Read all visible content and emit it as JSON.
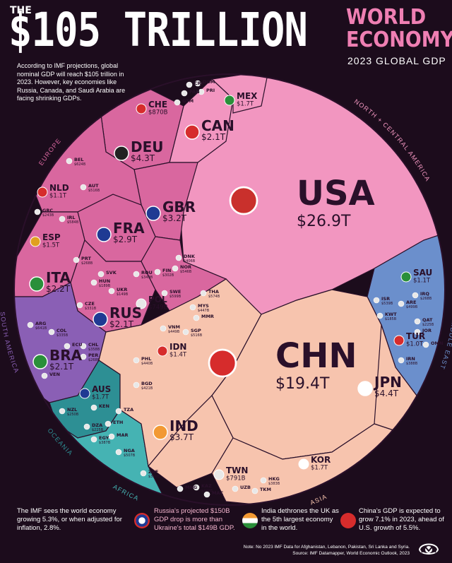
{
  "header": {
    "the": "THE",
    "title": "$105 TRILLION",
    "world": "WORLD",
    "economy": "ECONOMY",
    "subtitle": "2023 GLOBAL GDP"
  },
  "intro": "According to IMF projections, global nominal GDP will reach $105 trillion in 2023. However, key economies like Russia, Canada, and Saudi Arabia are facing shrinking GDPs.",
  "chart_data": {
    "type": "voronoi-treemap",
    "title": "The $105 Trillion World Economy",
    "subtitle": "2023 Global GDP",
    "regions": [
      {
        "name": "NORTH + CENTRAL AMERICA",
        "color": "#f296c0"
      },
      {
        "name": "ASIA",
        "color": "#f7c4ae"
      },
      {
        "name": "EUROPE",
        "color": "#d9679f"
      },
      {
        "name": "MIDDLE EAST",
        "color": "#6b8fcc"
      },
      {
        "name": "SOUTH AMERICA",
        "color": "#8a5fb5"
      },
      {
        "name": "OCEANIA",
        "color": "#2d8f94"
      },
      {
        "name": "AFRICA",
        "color": "#45b3b3"
      }
    ],
    "countries": [
      {
        "code": "USA",
        "value": "$26.9T",
        "region": "NORTH + CENTRAL AMERICA",
        "size": "xl"
      },
      {
        "code": "CHN",
        "value": "$19.4T",
        "region": "ASIA",
        "size": "xl"
      },
      {
        "code": "JPN",
        "value": "$4.4T",
        "region": "ASIA",
        "size": "m"
      },
      {
        "code": "DEU",
        "value": "$4.3T",
        "region": "EUROPE",
        "size": "m"
      },
      {
        "code": "IND",
        "value": "$3.7T",
        "region": "ASIA",
        "size": "m"
      },
      {
        "code": "GBR",
        "value": "$3.2T",
        "region": "EUROPE",
        "size": "m"
      },
      {
        "code": "FRA",
        "value": "$2.9T",
        "region": "EUROPE",
        "size": "m"
      },
      {
        "code": "ITA",
        "value": "$2.2T",
        "region": "EUROPE",
        "size": "m"
      },
      {
        "code": "BRA",
        "value": "$2.1T",
        "region": "SOUTH AMERICA",
        "size": "m"
      },
      {
        "code": "CAN",
        "value": "$2.1T",
        "region": "NORTH + CENTRAL AMERICA",
        "size": "m"
      },
      {
        "code": "RUS",
        "value": "$2.1T",
        "region": "EUROPE",
        "size": "m"
      },
      {
        "code": "MEX",
        "value": "$1.7T",
        "region": "NORTH + CENTRAL AMERICA",
        "size": "s"
      },
      {
        "code": "KOR",
        "value": "$1.7T",
        "region": "ASIA",
        "size": "s"
      },
      {
        "code": "AUS",
        "value": "$1.7T",
        "region": "OCEANIA",
        "size": "s"
      },
      {
        "code": "ESP",
        "value": "$1.5T",
        "region": "EUROPE",
        "size": "s"
      },
      {
        "code": "IDN",
        "value": "$1.4T",
        "region": "ASIA",
        "size": "s"
      },
      {
        "code": "NLD",
        "value": "$1.1T",
        "region": "EUROPE",
        "size": "s"
      },
      {
        "code": "SAU",
        "value": "$1.1T",
        "region": "MIDDLE EAST",
        "size": "s"
      },
      {
        "code": "TUR",
        "value": "$1.0T",
        "region": "MIDDLE EAST",
        "size": "s"
      },
      {
        "code": "CHE",
        "value": "$870B",
        "region": "EUROPE",
        "size": "s"
      },
      {
        "code": "TWN",
        "value": "$791B",
        "region": "ASIA",
        "size": "s"
      },
      {
        "code": "POL",
        "value": "$749B",
        "region": "EUROPE",
        "size": "s"
      },
      {
        "code": "BEL",
        "value": "$624B",
        "region": "EUROPE",
        "size": "xs"
      },
      {
        "code": "ARG",
        "value": "$641B",
        "region": "SOUTH AMERICA",
        "size": "xs"
      },
      {
        "code": "SWE",
        "value": "$599B",
        "region": "EUROPE",
        "size": "xs"
      },
      {
        "code": "IRL",
        "value": "$584B",
        "region": "EUROPE",
        "size": "xs"
      },
      {
        "code": "THA",
        "value": "$574B",
        "region": "ASIA",
        "size": "xs"
      },
      {
        "code": "ISR",
        "value": "$539B",
        "region": "MIDDLE EAST",
        "size": "xs"
      },
      {
        "code": "AUT",
        "value": "$516B",
        "region": "EUROPE",
        "size": "xs"
      },
      {
        "code": "NOR",
        "value": "$546B",
        "region": "EUROPE",
        "size": "xs"
      },
      {
        "code": "SGP",
        "value": "$516B",
        "region": "ASIA",
        "size": "xs"
      },
      {
        "code": "ARE",
        "value": "$499B",
        "region": "MIDDLE EAST",
        "size": "xs"
      },
      {
        "code": "NGA",
        "value": "$507B",
        "region": "AFRICA",
        "size": "xs"
      },
      {
        "code": "VNM",
        "value": "$449B",
        "region": "ASIA",
        "size": "xs"
      },
      {
        "code": "PHL",
        "value": "$440B",
        "region": "ASIA",
        "size": "xs"
      },
      {
        "code": "MYS",
        "value": "$447B",
        "region": "ASIA",
        "size": "xs"
      },
      {
        "code": "BGD",
        "value": "$421B",
        "region": "ASIA",
        "size": "xs"
      },
      {
        "code": "DNK",
        "value": "$406B",
        "region": "EUROPE",
        "size": "xs"
      },
      {
        "code": "EGY",
        "value": "$387B",
        "region": "AFRICA",
        "size": "xs"
      },
      {
        "code": "HKG",
        "value": "$383B",
        "region": "ASIA",
        "size": "xs"
      },
      {
        "code": "ZAF",
        "value": "$399B",
        "region": "AFRICA",
        "size": "xs"
      },
      {
        "code": "CHL",
        "value": "$358B",
        "region": "SOUTH AMERICA",
        "size": "xs"
      },
      {
        "code": "COL",
        "value": "$335B",
        "region": "SOUTH AMERICA",
        "size": "xs"
      },
      {
        "code": "ROU",
        "value": "$349B",
        "region": "EUROPE",
        "size": "xs"
      },
      {
        "code": "CZE",
        "value": "$331B",
        "region": "EUROPE",
        "size": "xs"
      },
      {
        "code": "FIN",
        "value": "$302B",
        "region": "EUROPE",
        "size": "xs"
      },
      {
        "code": "IRQ",
        "value": "$268B",
        "region": "MIDDLE EAST",
        "size": "xs"
      },
      {
        "code": "PRT",
        "value": "$268B",
        "region": "EUROPE",
        "size": "xs"
      },
      {
        "code": "PER",
        "value": "$268B",
        "region": "SOUTH AMERICA",
        "size": "xs"
      },
      {
        "code": "NZL",
        "value": "$250B",
        "region": "OCEANIA",
        "size": "xs"
      },
      {
        "code": "KAZ",
        "value": "$246B",
        "region": "ASIA",
        "size": "xs"
      },
      {
        "code": "GRC",
        "value": "$243B",
        "region": "EUROPE",
        "size": "xs"
      },
      {
        "code": "QAT",
        "value": "$225B",
        "region": "MIDDLE EAST",
        "size": "xs"
      },
      {
        "code": "DZA",
        "value": "$225B",
        "region": "AFRICA",
        "size": "xs"
      },
      {
        "code": "HUN",
        "value": "$189B",
        "region": "EUROPE",
        "size": "xs"
      },
      {
        "code": "KWT",
        "value": "$185B",
        "region": "MIDDLE EAST",
        "size": "xs"
      },
      {
        "code": "UZB",
        "value": "",
        "region": "ASIA",
        "size": "xs"
      },
      {
        "code": "TKM",
        "value": "",
        "region": "ASIA",
        "size": "xs"
      },
      {
        "code": "MAC",
        "value": "",
        "region": "ASIA",
        "size": "xs"
      },
      {
        "code": "MNG",
        "value": "",
        "region": "ASIA",
        "size": "xs"
      },
      {
        "code": "MMR",
        "value": "",
        "region": "ASIA",
        "size": "xs"
      },
      {
        "code": "KEN",
        "value": "",
        "region": "AFRICA",
        "size": "xs"
      },
      {
        "code": "ETH",
        "value": "",
        "region": "AFRICA",
        "size": "xs"
      },
      {
        "code": "MAR",
        "value": "",
        "region": "AFRICA",
        "size": "xs"
      },
      {
        "code": "TZA",
        "value": "",
        "region": "AFRICA",
        "size": "xs"
      },
      {
        "code": "IRN",
        "value": "$388B",
        "region": "MIDDLE EAST",
        "size": "xs"
      },
      {
        "code": "JOR",
        "value": "",
        "region": "MIDDLE EAST",
        "size": "xs"
      },
      {
        "code": "OMN",
        "value": "",
        "region": "MIDDLE EAST",
        "size": "xs"
      },
      {
        "code": "ECU",
        "value": "",
        "region": "SOUTH AMERICA",
        "size": "xs"
      },
      {
        "code": "VEN",
        "value": "",
        "region": "SOUTH AMERICA",
        "size": "xs"
      },
      {
        "code": "PAN",
        "value": "",
        "region": "NORTH + CENTRAL AMERICA",
        "size": "xs"
      },
      {
        "code": "CRI",
        "value": "",
        "region": "NORTH + CENTRAL AMERICA",
        "size": "xs"
      },
      {
        "code": "GTM",
        "value": "",
        "region": "NORTH + CENTRAL AMERICA",
        "size": "xs"
      },
      {
        "code": "DOM",
        "value": "",
        "region": "NORTH + CENTRAL AMERICA",
        "size": "xs"
      },
      {
        "code": "PRI",
        "value": "",
        "region": "NORTH + CENTRAL AMERICA",
        "size": "xs"
      },
      {
        "code": "SVK",
        "value": "",
        "region": "EUROPE",
        "size": "xs"
      },
      {
        "code": "UKR",
        "value": "$149B",
        "region": "EUROPE",
        "size": "xs"
      }
    ]
  },
  "footer": {
    "f1": "The IMF sees the world economy growing 5.3%, or when adjusted for inflation, 2.8%.",
    "f2": "Russia's projected $150B GDP drop is more than Ukraine's total $149B GDP.",
    "f3": "India dethrones the UK as the 5th largest economy in the world.",
    "f4": "China's GDP is expected to grow 7.1% in 2023, ahead of U.S. growth of 5.5%.",
    "note": "Note: No 2023 IMF Data for Afghanistan, Lebanon, Pakistan, Sri Lanka and Syria.",
    "source": "Source: IMF Datamapper, World Economic Outlook, 2023"
  },
  "colors": {
    "bg": "#1c0c1c",
    "accent": "#ef7fb3",
    "usa": "#f296c0",
    "asia": "#f7c4ae",
    "europe": "#d9679f",
    "middle_east": "#6b8fcc",
    "south_america": "#8a5fb5",
    "oceania": "#2d8f94",
    "africa": "#45b3b3"
  }
}
